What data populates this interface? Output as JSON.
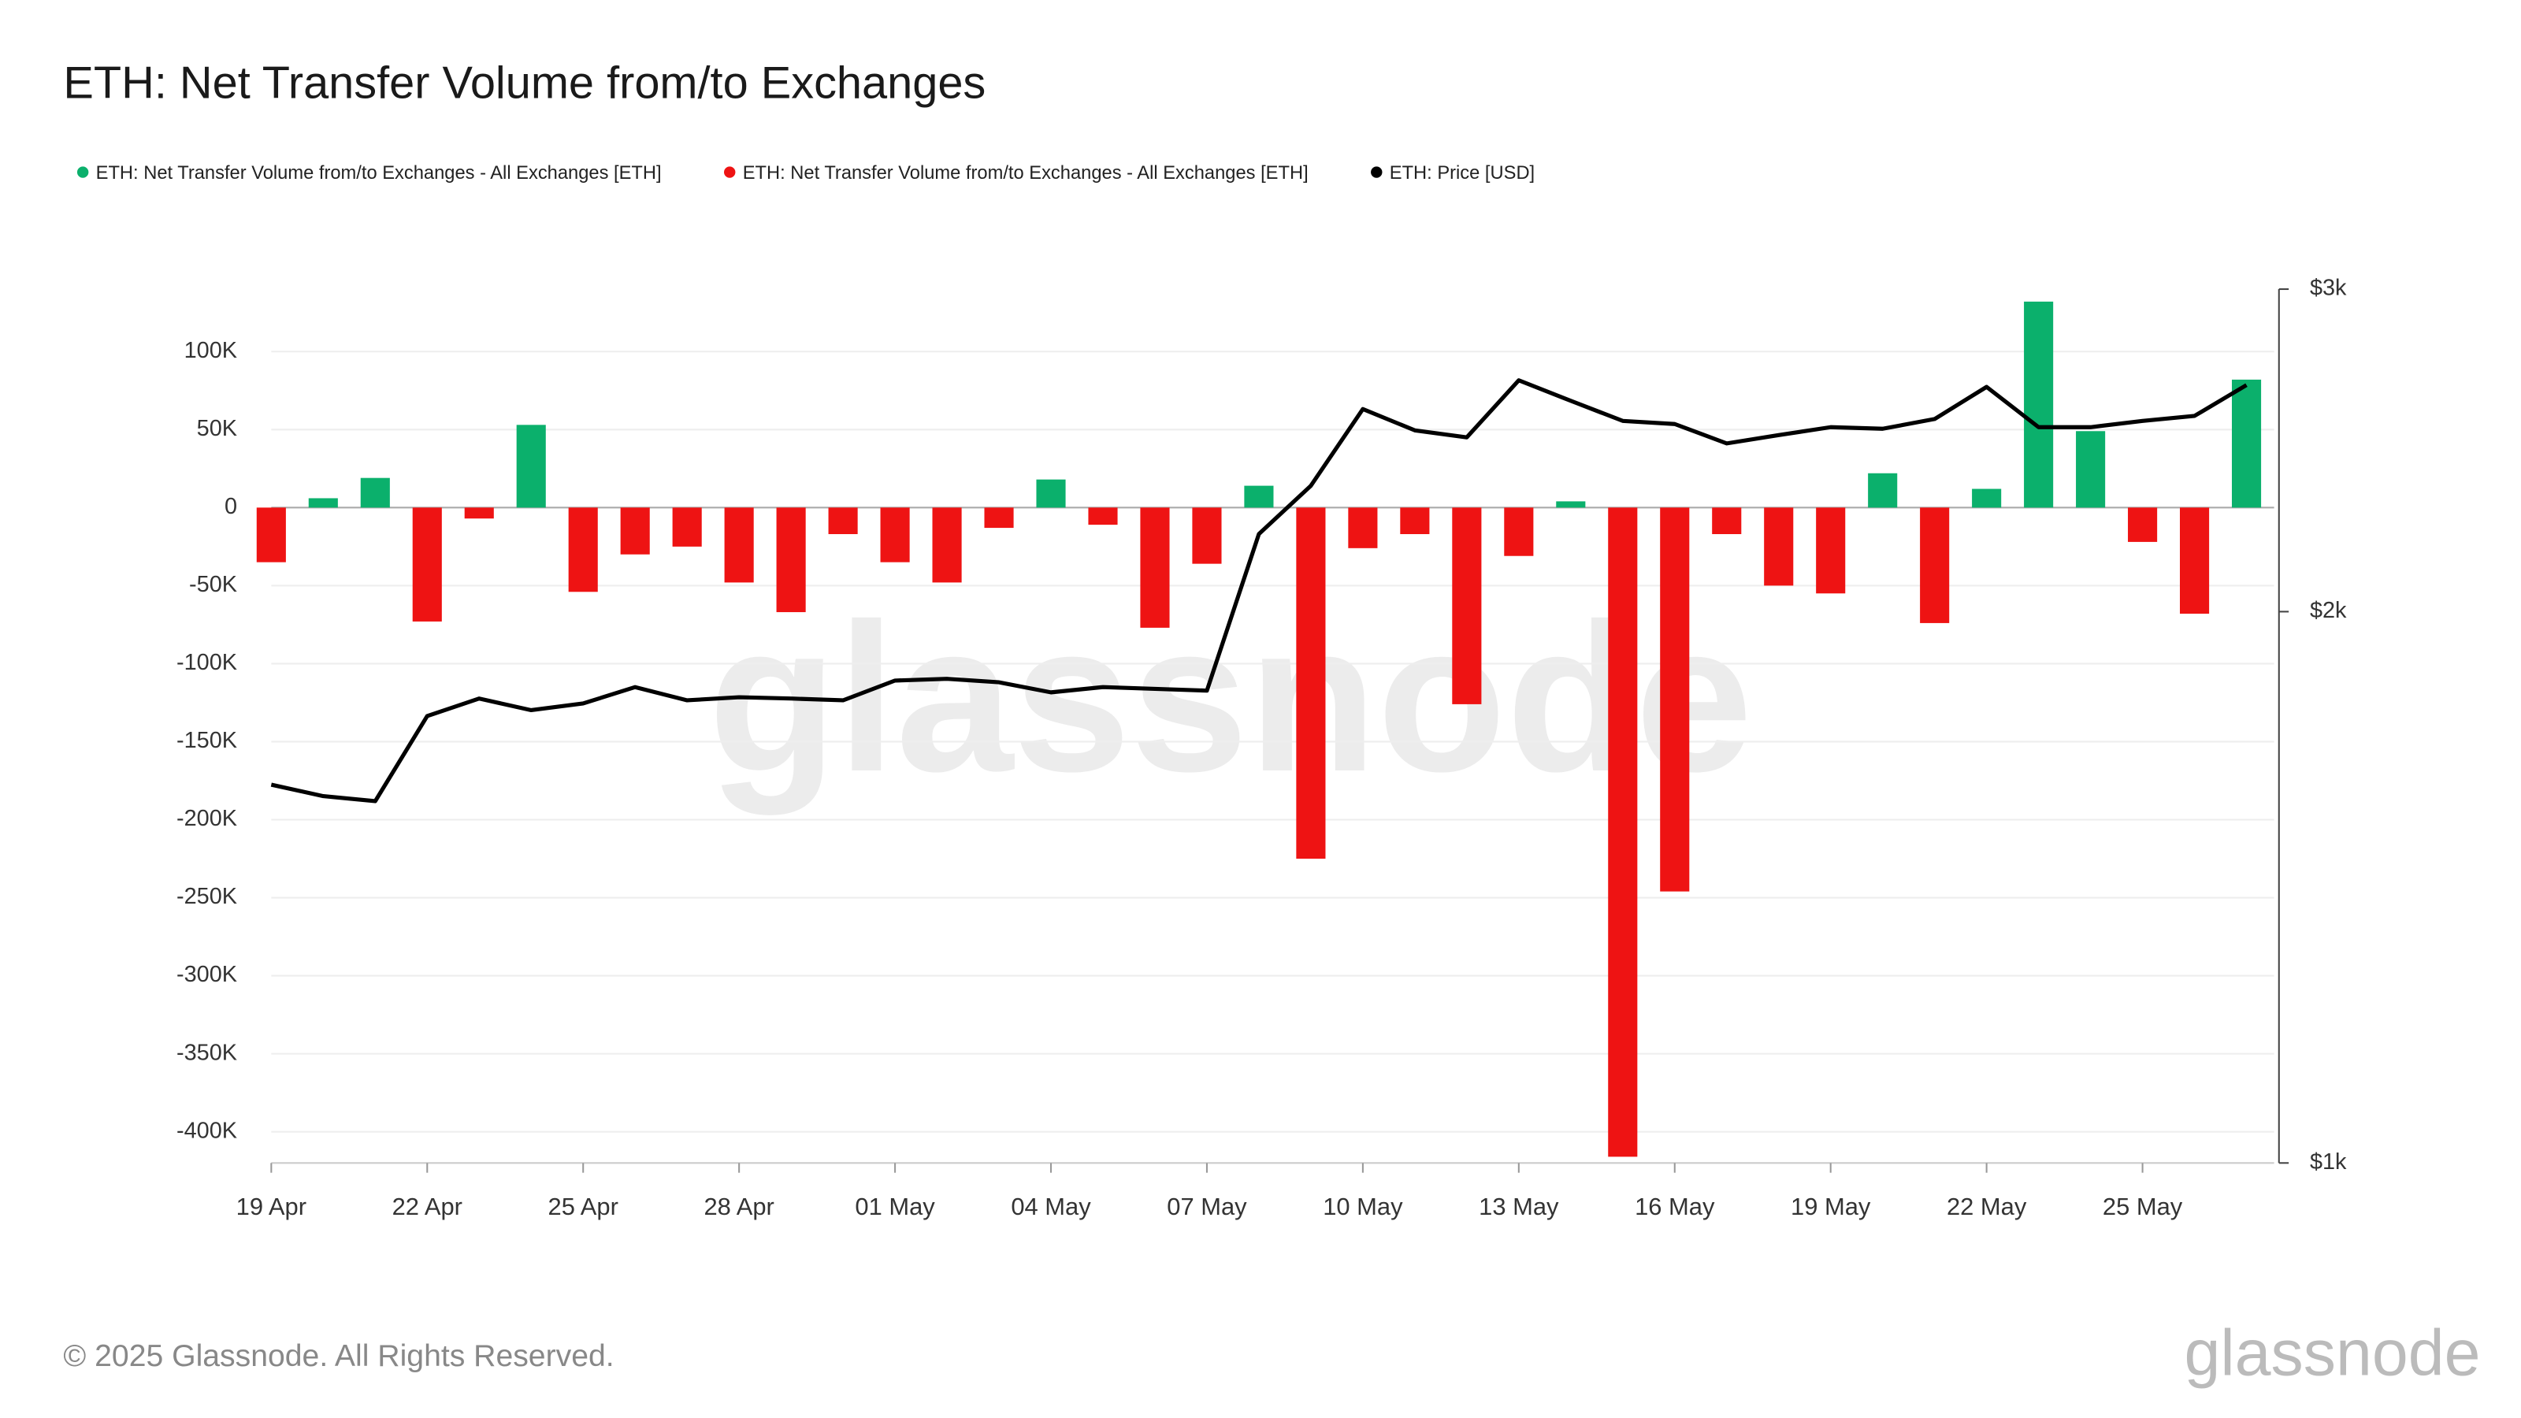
{
  "chart_data": {
    "type": "bar",
    "title": "ETH: Net Transfer Volume from/to Exchanges",
    "watermark": "glassnode",
    "footer": "© 2025 Glassnode. All Rights Reserved.",
    "logo": "glassnode",
    "categories": [
      "19 Apr",
      null,
      null,
      "22 Apr",
      null,
      null,
      "25 Apr",
      null,
      null,
      "28 Apr",
      null,
      null,
      "01 May",
      null,
      null,
      "04 May",
      null,
      null,
      "07 May",
      null,
      null,
      "10 May",
      null,
      null,
      "13 May",
      null,
      null,
      "16 May",
      null,
      null,
      "19 May",
      null,
      null,
      "22 May",
      null,
      null,
      "25 May",
      null,
      null
    ],
    "series": [
      {
        "name": "ETH: Net Transfer Volume from/to Exchanges - All Exchanges [ETH]",
        "color": "#0bb06c",
        "values": [
          null,
          6000,
          19000,
          null,
          null,
          53000,
          null,
          null,
          null,
          null,
          null,
          null,
          null,
          null,
          null,
          18000,
          null,
          null,
          null,
          14000,
          null,
          null,
          null,
          null,
          null,
          4000,
          null,
          null,
          null,
          null,
          null,
          22000,
          null,
          12000,
          132000,
          49000,
          null,
          null,
          82000
        ]
      },
      {
        "name": "ETH: Net Transfer Volume from/to Exchanges - All Exchanges [ETH]",
        "color": "#ee1313",
        "values": [
          -35000,
          null,
          null,
          -73000,
          -7000,
          null,
          -54000,
          -30000,
          -25000,
          -48000,
          -67000,
          -17000,
          -35000,
          -48000,
          -13000,
          null,
          -11000,
          -77000,
          -36000,
          null,
          -225000,
          -26000,
          -17000,
          -126000,
          -31000,
          null,
          -416000,
          -246000,
          -17000,
          -50000,
          -55000,
          null,
          -74000,
          null,
          null,
          null,
          -22000,
          -68000,
          null
        ]
      },
      {
        "name": "ETH: Price [USD]",
        "color": "#000000",
        "type": "line",
        "axis": "y2",
        "values": [
          1609,
          1586,
          1576,
          1754,
          1793,
          1767,
          1782,
          1819,
          1789,
          1796,
          1793,
          1789,
          1834,
          1838,
          1830,
          1807,
          1819,
          1815,
          1811,
          2205,
          2343,
          2580,
          2512,
          2490,
          2675,
          2607,
          2542,
          2532,
          2471,
          2497,
          2522,
          2517,
          2548,
          2653,
          2522,
          2522,
          2542,
          2558,
          2659
        ]
      }
    ],
    "ylim": [
      -420000,
      140000
    ],
    "yticks": [
      {
        "value": 100000,
        "label": "100K"
      },
      {
        "value": 50000,
        "label": "50K"
      },
      0,
      {
        "value": -50000,
        "label": "-50K"
      },
      {
        "value": -100000,
        "label": "-100K"
      },
      {
        "value": -150000,
        "label": "-150K"
      },
      {
        "value": -200000,
        "label": "-200K"
      },
      {
        "value": -250000,
        "label": "-250K"
      },
      {
        "value": -300000,
        "label": "-300K"
      },
      {
        "value": -350000,
        "label": "-350K"
      },
      {
        "value": -400000,
        "label": "-400K"
      }
    ],
    "y2lim": [
      1000,
      3000
    ],
    "y2ticks": [
      {
        "value": 1000,
        "label": "$1k"
      },
      {
        "value": 2000,
        "label": "$2k"
      },
      {
        "value": 3000,
        "label": "$3k"
      }
    ],
    "y2log": true,
    "grid": true
  }
}
